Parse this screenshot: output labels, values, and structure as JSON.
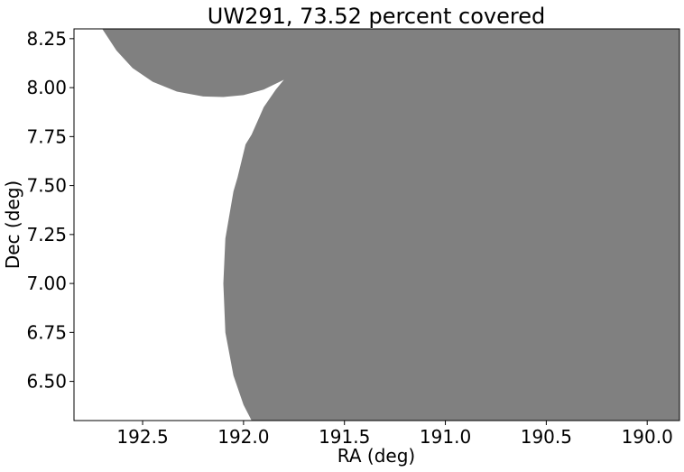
{
  "chart_data": {
    "type": "area",
    "title": "UW291, 73.52 percent covered",
    "xlabel": "RA (deg)",
    "ylabel": "Dec (deg)",
    "xlim": [
      192.84,
      189.84
    ],
    "ylim": [
      6.3,
      8.3
    ],
    "x_ticks": [
      192.5,
      192.0,
      191.5,
      191.0,
      190.5,
      190.0
    ],
    "x_tick_labels": [
      "192.5",
      "192.0",
      "191.5",
      "191.0",
      "190.5",
      "190.0"
    ],
    "y_ticks": [
      6.5,
      6.75,
      7.0,
      7.25,
      7.5,
      7.75,
      8.0,
      8.25
    ],
    "y_tick_labels": [
      "6.50",
      "6.75",
      "7.00",
      "7.25",
      "7.50",
      "7.75",
      "8.00",
      "8.25"
    ],
    "coverage_percent": 73.52,
    "covered_color": "#808080",
    "uncovered_color": "#ffffff",
    "covered_region": [
      {
        "x": 192.7,
        "y": 8.3
      },
      {
        "x": 192.63,
        "y": 8.19
      },
      {
        "x": 192.55,
        "y": 8.1
      },
      {
        "x": 192.45,
        "y": 8.03
      },
      {
        "x": 192.33,
        "y": 7.98
      },
      {
        "x": 192.2,
        "y": 7.955
      },
      {
        "x": 192.1,
        "y": 7.952
      },
      {
        "x": 192.0,
        "y": 7.962
      },
      {
        "x": 191.9,
        "y": 7.99
      },
      {
        "x": 191.8,
        "y": 8.04
      },
      {
        "x": 191.84,
        "y": 7.99
      },
      {
        "x": 191.9,
        "y": 7.9
      },
      {
        "x": 191.96,
        "y": 7.76
      },
      {
        "x": 191.99,
        "y": 7.71
      },
      {
        "x": 192.03,
        "y": 7.54
      },
      {
        "x": 192.05,
        "y": 7.47
      },
      {
        "x": 192.07,
        "y": 7.35
      },
      {
        "x": 192.09,
        "y": 7.23
      },
      {
        "x": 192.1,
        "y": 7.0
      },
      {
        "x": 192.09,
        "y": 6.75
      },
      {
        "x": 192.05,
        "y": 6.53
      },
      {
        "x": 192.0,
        "y": 6.38
      },
      {
        "x": 191.96,
        "y": 6.3
      },
      {
        "x": 189.84,
        "y": 6.3
      },
      {
        "x": 189.84,
        "y": 8.3
      }
    ]
  }
}
